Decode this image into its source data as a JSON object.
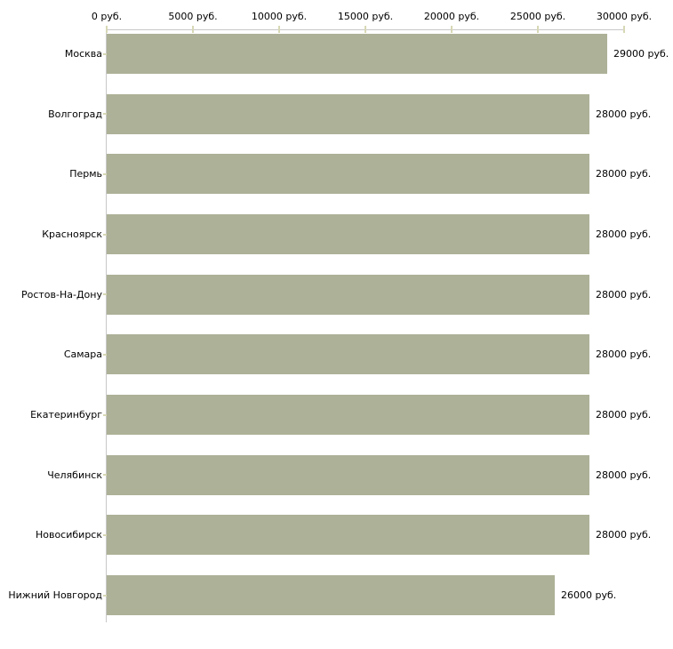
{
  "chart_data": {
    "type": "bar",
    "orientation": "horizontal",
    "title": "",
    "xlabel": "",
    "ylabel": "",
    "categories": [
      "Москва",
      "Волгоград",
      "Пермь",
      "Красноярск",
      "Ростов-На-Дону",
      "Самара",
      "Екатеринбург",
      "Челябинск",
      "Новосибирск",
      "Нижний Новгород"
    ],
    "values": [
      29000,
      28000,
      28000,
      28000,
      28000,
      28000,
      28000,
      28000,
      28000,
      26000
    ],
    "value_labels": [
      "29000 руб.",
      "28000 руб.",
      "28000 руб.",
      "28000 руб.",
      "28000 руб.",
      "28000 руб.",
      "28000 руб.",
      "28000 руб.",
      "28000 руб.",
      "26000 руб."
    ],
    "x_ticks": [
      0,
      5000,
      10000,
      15000,
      20000,
      25000,
      30000
    ],
    "x_tick_labels": [
      "0 руб.",
      "5000 руб.",
      "10000 руб.",
      "15000 руб.",
      "20000 руб.",
      "25000 руб.",
      "30000 руб."
    ],
    "xlim": [
      0,
      30000
    ],
    "grid": false,
    "legend": false,
    "colors": {
      "bar_fill": "#ADB197",
      "axis_line": "#C8C8C8",
      "tick_mark": "#D7D8B5",
      "text": "#000000",
      "background": "#FFFFFF"
    }
  }
}
